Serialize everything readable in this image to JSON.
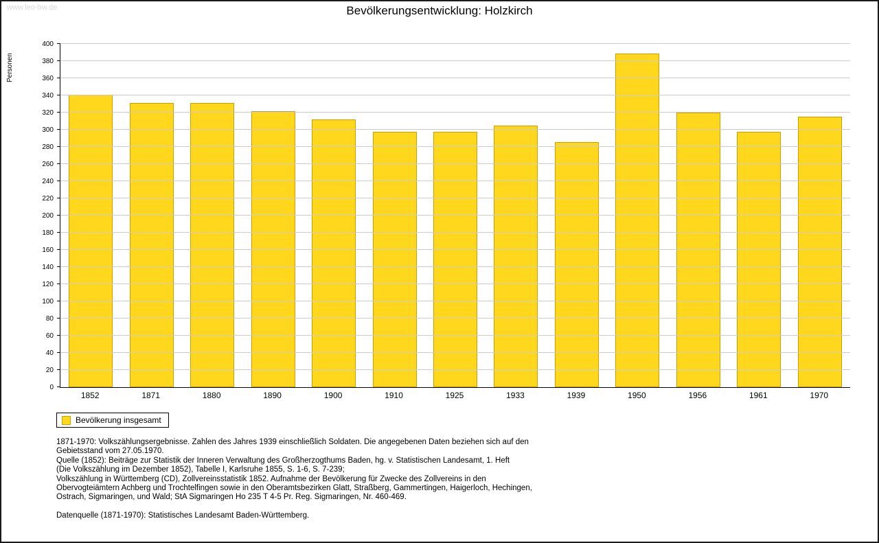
{
  "page": {
    "watermark": "www.leo-bw.de",
    "title": "Bevölkerungsentwicklung: Holzkirch"
  },
  "chart_data": {
    "type": "bar",
    "title": "Bevölkerungsentwicklung: Holzkirch",
    "xlabel": "",
    "ylabel": "Personen",
    "ylim": [
      0,
      400
    ],
    "ytick_step": 20,
    "grid": true,
    "legend_position": "bottom-left",
    "categories": [
      "1852",
      "1871",
      "1880",
      "1890",
      "1900",
      "1910",
      "1925",
      "1933",
      "1939",
      "1950",
      "1956",
      "1961",
      "1970"
    ],
    "series": [
      {
        "name": "Bevölkerung insgesamt",
        "values": [
          341,
          331,
          331,
          322,
          312,
          298,
          298,
          305,
          286,
          389,
          320,
          298,
          315
        ]
      }
    ],
    "bar_color": "#ffd71c",
    "bar_border_color": "#c9a000",
    "grid_color": "#cccccc"
  },
  "legend": {
    "label": "Bevölkerung insgesamt"
  },
  "footer": {
    "lines": [
      "1871-1970: Volkszählungsergebnisse. Zahlen des Jahres 1939 einschließlich Soldaten. Die angegebenen Daten beziehen sich auf den",
      "Gebietsstand vom 27.05.1970.",
      "Quelle (1852): Beiträge zur Statistik der Inneren Verwaltung des Großherzogthums Baden, hg. v. Statistischen Landesamt, 1. Heft",
      "(Die Volkszählung im Dezember 1852), Tabelle I, Karlsruhe 1855, S. 1-6, S. 7-239;",
      "Volkszählung in Württemberg (CD), Zollvereinsstatistik 1852. Aufnahme der Bevölkerung für Zwecke des Zollvereins in den",
      "Obervogteiämtern Achberg und Trochtelfingen sowie in den Oberamtsbezirken Glatt, Straßberg, Gammertingen, Haigerloch, Hechingen,",
      "Ostrach, Sigmaringen, und Wald; StA Sigmaringen Ho 235 T 4-5 Pr. Reg. Sigmaringen, Nr. 460-469.",
      "",
      "Datenquelle (1871-1970): Statistisches Landesamt Baden-Württemberg."
    ]
  }
}
